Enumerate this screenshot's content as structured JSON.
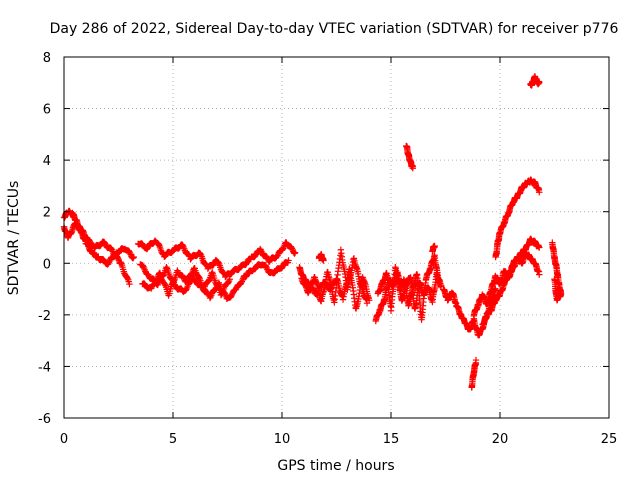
{
  "chart_data": {
    "type": "scatter",
    "title": "Day 286 of 2022, Sidereal Day-to-day VTEC variation (SDTVAR) for receiver p776",
    "xlabel": "GPS time / hours",
    "ylabel": "SDTVAR / TECUs",
    "xlim": [
      0,
      25
    ],
    "ylim": [
      -6,
      8
    ],
    "xticks": [
      0,
      5,
      10,
      15,
      20,
      25
    ],
    "xtick_labels": [
      "0",
      "5",
      "10",
      "15",
      "20",
      "25"
    ],
    "yticks": [
      -6,
      -4,
      -2,
      0,
      2,
      4,
      6,
      8
    ],
    "ytick_labels": [
      "-6",
      "-4",
      "-2",
      "0",
      "2",
      "4",
      "6",
      "8"
    ],
    "grid": true,
    "marker": "+",
    "color": "#ff0000",
    "series": [
      {
        "name": "SDTVAR",
        "segments": [
          {
            "x": [
              0.0,
              0.2,
              0.4,
              0.6,
              0.8,
              1.0,
              1.3,
              1.6,
              2.0,
              2.4,
              2.8,
              3.2
            ],
            "y": [
              1.8,
              2.0,
              1.9,
              1.6,
              1.2,
              0.8,
              0.4,
              0.2,
              0.0,
              0.4,
              0.6,
              0.2
            ]
          },
          {
            "x": [
              0.0,
              0.2,
              0.5,
              0.8,
              1.1,
              1.4,
              1.8,
              2.2,
              2.6,
              3.0
            ],
            "y": [
              1.4,
              1.0,
              1.5,
              1.3,
              0.9,
              0.6,
              0.8,
              0.5,
              0.0,
              -0.8
            ]
          },
          {
            "x": [
              3.4,
              3.8,
              4.2,
              4.6,
              5.0,
              5.4,
              5.8,
              6.2,
              6.6,
              7.0,
              7.4,
              7.8,
              8.2,
              8.6,
              9.0,
              9.4,
              9.8,
              10.2,
              10.6
            ],
            "y": [
              0.8,
              0.6,
              0.9,
              0.3,
              0.5,
              0.7,
              0.2,
              0.4,
              -0.2,
              0.1,
              -0.5,
              -0.3,
              -0.1,
              0.2,
              0.5,
              0.1,
              0.3,
              0.8,
              0.4
            ]
          },
          {
            "x": [
              3.5,
              3.9,
              4.3,
              4.7,
              5.1,
              5.5,
              5.9,
              6.3,
              6.7,
              7.1,
              7.5,
              7.9,
              8.3,
              8.7,
              9.1,
              9.5,
              9.9,
              10.3
            ],
            "y": [
              0.0,
              -0.5,
              -0.8,
              -0.2,
              -0.9,
              -1.1,
              -0.6,
              -0.9,
              -1.3,
              -0.8,
              -1.4,
              -1.0,
              -0.5,
              -0.2,
              0.0,
              -0.4,
              -0.2,
              0.1
            ]
          },
          {
            "x": [
              3.6,
              4.0,
              4.4,
              4.8,
              5.2,
              5.6,
              6.0,
              6.4,
              6.8,
              7.2,
              7.6
            ],
            "y": [
              -0.8,
              -1.0,
              -0.4,
              -1.2,
              -0.3,
              -0.7,
              -0.2,
              -1.0,
              -0.4,
              -1.2,
              -0.6
            ]
          },
          {
            "x": [
              10.8,
              11.0,
              11.3,
              11.6,
              11.9,
              12.2,
              12.5,
              12.8,
              13.1,
              13.4,
              13.7,
              14.0
            ],
            "y": [
              -0.2,
              -0.6,
              -0.9,
              -1.2,
              -0.7,
              -1.0,
              -0.6,
              -1.4,
              -0.2,
              -1.8,
              -0.5,
              -1.4
            ]
          },
          {
            "x": [
              10.9,
              11.2,
              11.5,
              11.8,
              12.1,
              12.4,
              12.7,
              13.0,
              13.3,
              13.6,
              13.9
            ],
            "y": [
              -0.6,
              -1.1,
              -0.5,
              -1.5,
              -0.3,
              -1.5,
              0.5,
              -1.0,
              0.2,
              -0.8,
              -1.5
            ]
          },
          {
            "x": [
              11.7,
              11.8,
              11.9
            ],
            "y": [
              0.2,
              0.3,
              0.1
            ]
          },
          {
            "x": [
              14.3,
              14.5,
              14.7,
              14.9,
              15.1,
              15.3,
              15.5,
              15.7,
              15.9,
              16.1,
              16.3,
              16.5,
              16.7,
              16.9,
              17.1,
              17.3
            ],
            "y": [
              -2.2,
              -1.8,
              -1.4,
              -0.6,
              -0.9,
              -0.3,
              -1.5,
              -0.8,
              -0.5,
              -1.8,
              -0.7,
              -1.2,
              -0.9,
              -1.5,
              -0.4,
              -0.9
            ]
          },
          {
            "x": [
              14.4,
              14.6,
              14.8,
              15.0,
              15.2,
              15.4,
              15.6,
              15.8,
              16.0,
              16.2,
              16.4,
              16.6,
              16.8,
              17.0,
              17.2
            ],
            "y": [
              -1.2,
              -0.8,
              -0.4,
              -1.8,
              -0.2,
              -1.0,
              -0.6,
              -1.6,
              -1.0,
              -0.4,
              -2.2,
              -0.6,
              -0.2,
              0.3,
              -0.8
            ]
          },
          {
            "x": [
              15.7,
              15.8,
              15.9,
              16.0
            ],
            "y": [
              4.6,
              4.2,
              3.9,
              3.7
            ]
          },
          {
            "x": [
              16.9,
              17.0
            ],
            "y": [
              0.5,
              0.7
            ]
          },
          {
            "x": [
              17.4,
              17.6,
              17.8,
              18.0,
              18.2,
              18.4,
              18.6,
              18.8,
              19.0,
              19.2,
              19.4,
              19.6,
              19.8
            ],
            "y": [
              -1.0,
              -1.4,
              -1.1,
              -1.6,
              -2.0,
              -2.3,
              -2.6,
              -2.2,
              -2.8,
              -2.5,
              -2.0,
              -1.5,
              -1.0
            ]
          },
          {
            "x": [
              18.7,
              18.8,
              18.9
            ],
            "y": [
              -4.8,
              -4.2,
              -3.8
            ]
          },
          {
            "x": [
              18.8,
              19.0,
              19.2,
              19.4,
              19.6,
              19.8,
              20.0,
              20.2,
              20.4,
              20.6,
              20.8,
              21.0,
              21.2,
              21.4,
              21.6,
              21.8
            ],
            "y": [
              -2.0,
              -1.6,
              -1.2,
              -1.6,
              -1.0,
              -0.5,
              -0.8,
              -0.3,
              -0.6,
              0.0,
              0.2,
              0.4,
              0.6,
              0.9,
              0.8,
              0.6
            ]
          },
          {
            "x": [
              19.2,
              19.4,
              19.6,
              19.8,
              20.0,
              20.2,
              20.4,
              20.6,
              20.8,
              21.0,
              21.2,
              21.4,
              21.6,
              21.8
            ],
            "y": [
              -2.4,
              -2.0,
              -1.8,
              -1.4,
              -1.2,
              -0.8,
              -0.4,
              -0.2,
              0.2,
              0.0,
              0.4,
              0.2,
              0.0,
              -0.4
            ]
          },
          {
            "x": [
              19.8,
              19.9,
              20.0,
              20.2,
              20.4,
              20.6,
              20.8,
              21.0,
              21.2,
              21.4,
              21.6,
              21.8
            ],
            "y": [
              0.2,
              0.8,
              1.2,
              1.6,
              2.0,
              2.4,
              2.6,
              2.9,
              3.1,
              3.2,
              3.1,
              2.8
            ]
          },
          {
            "x": [
              21.4,
              21.5,
              21.6,
              21.7,
              21.8
            ],
            "y": [
              6.9,
              7.0,
              7.2,
              7.0,
              7.0
            ]
          },
          {
            "x": [
              22.4,
              22.5,
              22.6,
              22.7,
              22.8,
              22.6,
              22.5
            ],
            "y": [
              0.8,
              0.2,
              -0.2,
              -0.8,
              -1.2,
              -1.4,
              -0.6
            ]
          }
        ]
      }
    ]
  }
}
